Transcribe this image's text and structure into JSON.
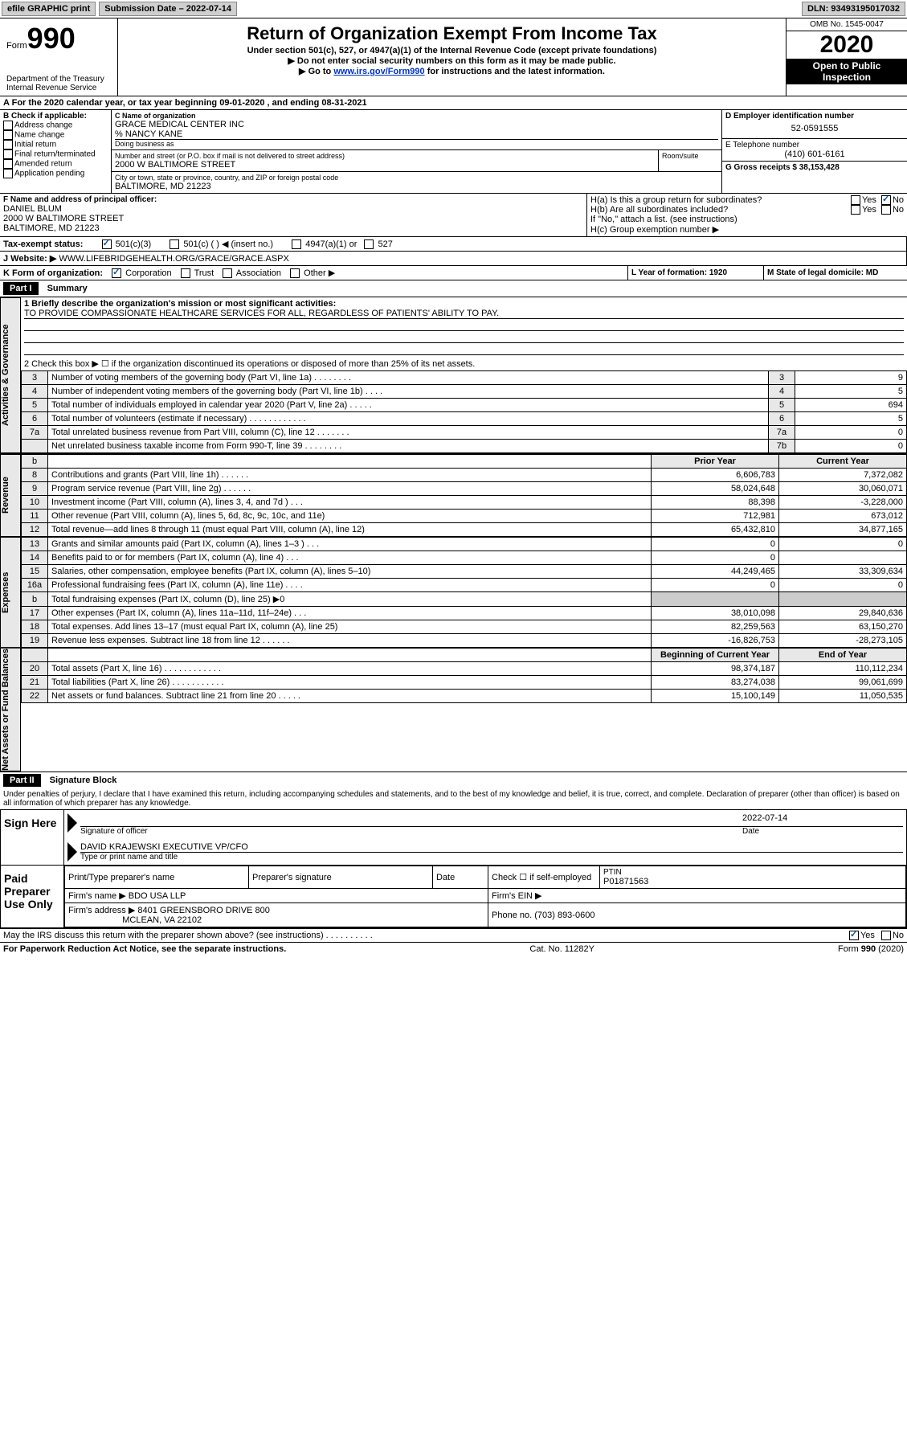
{
  "topbar": {
    "efile": "efile GRAPHIC print",
    "submission_label": "Submission Date – 2022-07-14",
    "dln": "DLN: 93493195017032"
  },
  "header": {
    "form_word": "Form",
    "form_num": "990",
    "dept1": "Department of the Treasury",
    "dept2": "Internal Revenue Service",
    "title": "Return of Organization Exempt From Income Tax",
    "sub": "Under section 501(c), 527, or 4947(a)(1) of the Internal Revenue Code (except private foundations)",
    "inst1": "▶ Do not enter social security numbers on this form as it may be made public.",
    "inst2_pre": "▶ Go to ",
    "inst2_link": "www.irs.gov/Form990",
    "inst2_post": " for instructions and the latest information.",
    "omb": "OMB No. 1545-0047",
    "year": "2020",
    "open": "Open to Public Inspection"
  },
  "period": "For the 2020 calendar year, or tax year beginning 09-01-2020   , and ending 08-31-2021",
  "boxB": {
    "head": "B Check if applicable:",
    "opts": [
      "Address change",
      "Name change",
      "Initial return",
      "Final return/terminated",
      "Amended return",
      "Application pending"
    ]
  },
  "boxC": {
    "label": "C Name of organization",
    "name": "GRACE MEDICAL CENTER INC",
    "co": "% NANCY KANE",
    "dba_label": "Doing business as",
    "street_label": "Number and street (or P.O. box if mail is not delivered to street address)",
    "street": "2000 W BALTIMORE STREET",
    "room_label": "Room/suite",
    "city_label": "City or town, state or province, country, and ZIP or foreign postal code",
    "city": "BALTIMORE, MD  21223"
  },
  "boxD": {
    "label": "D Employer identification number",
    "val": "52-0591555"
  },
  "boxE": {
    "label": "E Telephone number",
    "val": "(410) 601-6161"
  },
  "boxG": {
    "label": "G Gross receipts $ 38,153,428"
  },
  "boxF": {
    "label": "F  Name and address of principal officer:",
    "name": "DANIEL BLUM",
    "street": "2000 W BALTIMORE STREET",
    "city": "BALTIMORE, MD  21223"
  },
  "boxH": {
    "a": "H(a)  Is this a group return for subordinates?",
    "b": "H(b)  Are all subordinates included?",
    "note": "If \"No,\" attach a list. (see instructions)",
    "c": "H(c)  Group exemption number ▶",
    "yes": "Yes",
    "no": "No"
  },
  "taxexempt": {
    "label": "Tax-exempt status:",
    "o1": "501(c)(3)",
    "o2": "501(c) (  ) ◀ (insert no.)",
    "o3": "4947(a)(1) or",
    "o4": "527"
  },
  "boxJ": {
    "label": "J Website: ▶",
    "val": "WWW.LIFEBRIDGEHEALTH.ORG/GRACE/GRACE.ASPX"
  },
  "boxK": {
    "label": "K Form of organization:",
    "opts": [
      "Corporation",
      "Trust",
      "Association",
      "Other ▶"
    ]
  },
  "boxL": {
    "label": "L Year of formation: 1920"
  },
  "boxM": {
    "label": "M State of legal domicile: MD"
  },
  "part1": {
    "head": "Part I",
    "title": "Summary",
    "q1_label": "1  Briefly describe the organization's mission or most significant activities:",
    "q1_ans": "TO PROVIDE COMPASSIONATE HEALTHCARE SERVICES FOR ALL, REGARDLESS OF PATIENTS' ABILITY TO PAY.",
    "q2": "2   Check this box ▶ ☐  if the organization discontinued its operations or disposed of more than 25% of its net assets."
  },
  "section_labels": {
    "gov": "Activities & Governance",
    "rev": "Revenue",
    "exp": "Expenses",
    "net": "Net Assets or Fund Balances"
  },
  "gov_lines": [
    {
      "n": "3",
      "t": "Number of voting members of the governing body (Part VI, line 1a)   .    .    .    .    .    .    .    .",
      "box": "3",
      "v": "9"
    },
    {
      "n": "4",
      "t": "Number of independent voting members of the governing body (Part VI, line 1b)   .    .    .    .",
      "box": "4",
      "v": "5"
    },
    {
      "n": "5",
      "t": "Total number of individuals employed in calendar year 2020 (Part V, line 2a)   .    .    .    .    .",
      "box": "5",
      "v": "694"
    },
    {
      "n": "6",
      "t": "Total number of volunteers (estimate if necessary)   .    .    .    .    .    .    .    .    .    .    .    .",
      "box": "6",
      "v": "5"
    },
    {
      "n": "7a",
      "t": "Total unrelated business revenue from Part VIII, column (C), line 12   .    .    .    .    .    .    .",
      "box": "7a",
      "v": "0"
    },
    {
      "n": " ",
      "t": "Net unrelated business taxable income from Form 990-T, line 39   .    .    .    .    .    .    .    .",
      "box": "7b",
      "v": "0"
    }
  ],
  "two_col_head": {
    "prior": "Prior Year",
    "current": "Current Year",
    "boy": "Beginning of Current Year",
    "eoy": "End of Year"
  },
  "rev_lines": [
    {
      "n": "8",
      "t": "Contributions and grants (Part VIII, line 1h)   .    .    .    .    .    .",
      "p": "6,606,783",
      "c": "7,372,082"
    },
    {
      "n": "9",
      "t": "Program service revenue (Part VIII, line 2g)   .    .    .    .    .    .",
      "p": "58,024,648",
      "c": "30,060,071"
    },
    {
      "n": "10",
      "t": "Investment income (Part VIII, column (A), lines 3, 4, and 7d )   .    .    .",
      "p": "88,398",
      "c": "-3,228,000"
    },
    {
      "n": "11",
      "t": "Other revenue (Part VIII, column (A), lines 5, 6d, 8c, 9c, 10c, and 11e)",
      "p": "712,981",
      "c": "673,012"
    },
    {
      "n": "12",
      "t": "Total revenue—add lines 8 through 11 (must equal Part VIII, column (A), line 12)",
      "p": "65,432,810",
      "c": "34,877,165"
    }
  ],
  "exp_lines": [
    {
      "n": "13",
      "t": "Grants and similar amounts paid (Part IX, column (A), lines 1–3 )   .    .    .",
      "p": "0",
      "c": "0"
    },
    {
      "n": "14",
      "t": "Benefits paid to or for members (Part IX, column (A), line 4)   .    .    .",
      "p": "0",
      "c": ""
    },
    {
      "n": "15",
      "t": "Salaries, other compensation, employee benefits (Part IX, column (A), lines 5–10)",
      "p": "44,249,465",
      "c": "33,309,634"
    },
    {
      "n": "16a",
      "t": "Professional fundraising fees (Part IX, column (A), line 11e)   .    .    .    .",
      "p": "0",
      "c": "0"
    },
    {
      "n": "b",
      "t": "Total fundraising expenses (Part IX, column (D), line 25)  ▶0",
      "p": "",
      "c": ""
    },
    {
      "n": "17",
      "t": "Other expenses (Part IX, column (A), lines 11a–11d, 11f–24e)   .    .    .",
      "p": "38,010,098",
      "c": "29,840,636"
    },
    {
      "n": "18",
      "t": "Total expenses. Add lines 13–17 (must equal Part IX, column (A), line 25)",
      "p": "82,259,563",
      "c": "63,150,270"
    },
    {
      "n": "19",
      "t": "Revenue less expenses. Subtract line 18 from line 12   .    .    .    .    .    .",
      "p": "-16,826,753",
      "c": "-28,273,105"
    }
  ],
  "net_lines": [
    {
      "n": "20",
      "t": "Total assets (Part X, line 16)   .    .    .    .    .    .    .    .    .    .    .    .",
      "p": "98,374,187",
      "c": "110,112,234"
    },
    {
      "n": "21",
      "t": "Total liabilities (Part X, line 26)   .    .    .    .    .    .    .    .    .    .    .",
      "p": "83,274,038",
      "c": "99,061,699"
    },
    {
      "n": "22",
      "t": "Net assets or fund balances. Subtract line 21 from line 20   .    .    .    .    .",
      "p": "15,100,149",
      "c": "11,050,535"
    }
  ],
  "part2": {
    "head": "Part II",
    "title": "Signature Block"
  },
  "perjury": "Under penalties of perjury, I declare that I have examined this return, including accompanying schedules and statements, and to the best of my knowledge and belief, it is true, correct, and complete. Declaration of preparer (other than officer) is based on all information of which preparer has any knowledge.",
  "sign": {
    "here": "Sign Here",
    "sig_label": "Signature of officer",
    "date_label": "Date",
    "date": "2022-07-14",
    "name": "DAVID KRAJEWSKI  EXECUTIVE VP/CFO",
    "name_label": "Type or print name and title"
  },
  "paid": {
    "label": "Paid Preparer Use Only",
    "h_name": "Print/Type preparer's name",
    "h_sig": "Preparer's signature",
    "h_date": "Date",
    "h_check": "Check ☐ if self-employed",
    "h_ptin": "PTIN",
    "ptin": "P01871563",
    "firm_label": "Firm's name    ▶",
    "firm": "BDO USA LLP",
    "ein_label": "Firm's EIN ▶",
    "addr_label": "Firm's address ▶",
    "addr1": "8401 GREENSBORO DRIVE 800",
    "addr2": "MCLEAN, VA  22102",
    "phone_label": "Phone no. (703) 893-0600"
  },
  "discuss": "May the IRS discuss this return with the preparer shown above? (see instructions)   .    .    .    .    .    .    .    .    .    .",
  "footer": {
    "left": "For Paperwork Reduction Act Notice, see the separate instructions.",
    "mid": "Cat. No. 11282Y",
    "right_pre": "Form ",
    "right_num": "990",
    "right_post": " (2020)"
  }
}
